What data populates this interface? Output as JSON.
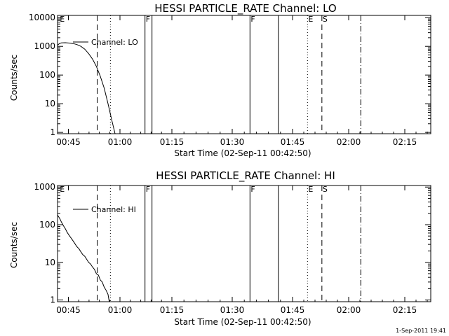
{
  "footer_stamp": "1-Sep-2011 19:41",
  "chart_data": [
    {
      "type": "line",
      "title": "HESSI PARTICLE_RATE Channel: LO",
      "xlabel": "Start Time (02-Sep-11 00:42:50)",
      "ylabel": "Counts/sec",
      "yscale": "log",
      "ylim": [
        0.9,
        12000
      ],
      "xlim_minutes_after_0042_50": [
        0,
        96
      ],
      "x_ticks": [
        "00:45",
        "01:00",
        "01:15",
        "01:30",
        "01:45",
        "02:00",
        "02:15"
      ],
      "y_ticks": [
        "1",
        "10",
        "100",
        "1000",
        "10000"
      ],
      "y_tick_values": [
        1,
        10,
        100,
        1000,
        10000
      ],
      "legend": [
        "Channel: LO"
      ],
      "series": [
        {
          "name": "Channel: LO",
          "x": [
            0,
            0.5,
            1,
            2,
            3,
            4,
            5,
            6,
            7,
            8,
            9,
            10,
            11,
            12,
            13,
            14,
            14.8
          ],
          "y": [
            1100,
            1250,
            1320,
            1340,
            1300,
            1250,
            1150,
            1000,
            800,
            560,
            360,
            200,
            90,
            35,
            10,
            2.5,
            0.9
          ]
        }
      ],
      "markers": [
        {
          "label": "E",
          "x": 0.4,
          "style": "none"
        },
        {
          "label": "",
          "x": 10.2,
          "style": "dashed"
        },
        {
          "label": "",
          "x": 13.6,
          "style": "dotted"
        },
        {
          "label": "F",
          "x": 22.5,
          "style": "solid"
        },
        {
          "label": "",
          "x": 24.3,
          "style": "solid"
        },
        {
          "label": "F",
          "x": 49.5,
          "style": "solid"
        },
        {
          "label": "",
          "x": 56.8,
          "style": "solid"
        },
        {
          "label": "E",
          "x": 64.3,
          "style": "dotted"
        },
        {
          "label": "S",
          "x": 68.0,
          "style": "dashed"
        },
        {
          "label": "",
          "x": 78.0,
          "style": "dashdot"
        }
      ]
    },
    {
      "type": "line",
      "title": "HESSI PARTICLE_RATE Channel: HI",
      "xlabel": "Start Time (02-Sep-11 00:42:50)",
      "ylabel": "Counts/sec",
      "yscale": "log",
      "ylim": [
        0.9,
        1100
      ],
      "xlim_minutes_after_0042_50": [
        0,
        96
      ],
      "x_ticks": [
        "00:45",
        "01:00",
        "01:15",
        "01:30",
        "01:45",
        "02:00",
        "02:15"
      ],
      "y_ticks": [
        "1",
        "10",
        "100",
        "1000"
      ],
      "y_tick_values": [
        1,
        10,
        100,
        1000
      ],
      "legend": [
        "Channel: HI"
      ],
      "series": [
        {
          "name": "Channel: HI",
          "x": [
            0,
            0.5,
            1,
            1.5,
            2,
            2.5,
            3,
            3.5,
            4,
            4.5,
            5,
            5.5,
            6,
            6.5,
            7,
            7.5,
            8,
            8.5,
            9,
            9.5,
            10,
            10.5,
            11,
            11.5,
            12,
            12.5,
            13,
            13.3
          ],
          "y": [
            180,
            150,
            118,
            95,
            78,
            62,
            52,
            44,
            37,
            31,
            26,
            23,
            19,
            16,
            14.5,
            12,
            10,
            9,
            7.5,
            6.5,
            5,
            4.6,
            3.4,
            3.0,
            2.2,
            1.8,
            1.4,
            0.9
          ]
        }
      ],
      "markers": [
        {
          "label": "E",
          "x": 0.4,
          "style": "none"
        },
        {
          "label": "",
          "x": 10.2,
          "style": "dashed"
        },
        {
          "label": "",
          "x": 13.6,
          "style": "dotted"
        },
        {
          "label": "F",
          "x": 22.5,
          "style": "solid"
        },
        {
          "label": "",
          "x": 24.3,
          "style": "solid"
        },
        {
          "label": "F",
          "x": 49.5,
          "style": "solid"
        },
        {
          "label": "",
          "x": 56.8,
          "style": "solid"
        },
        {
          "label": "E",
          "x": 64.3,
          "style": "dotted"
        },
        {
          "label": "S",
          "x": 68.0,
          "style": "dashed"
        },
        {
          "label": "",
          "x": 78.0,
          "style": "dashdot"
        }
      ]
    }
  ]
}
